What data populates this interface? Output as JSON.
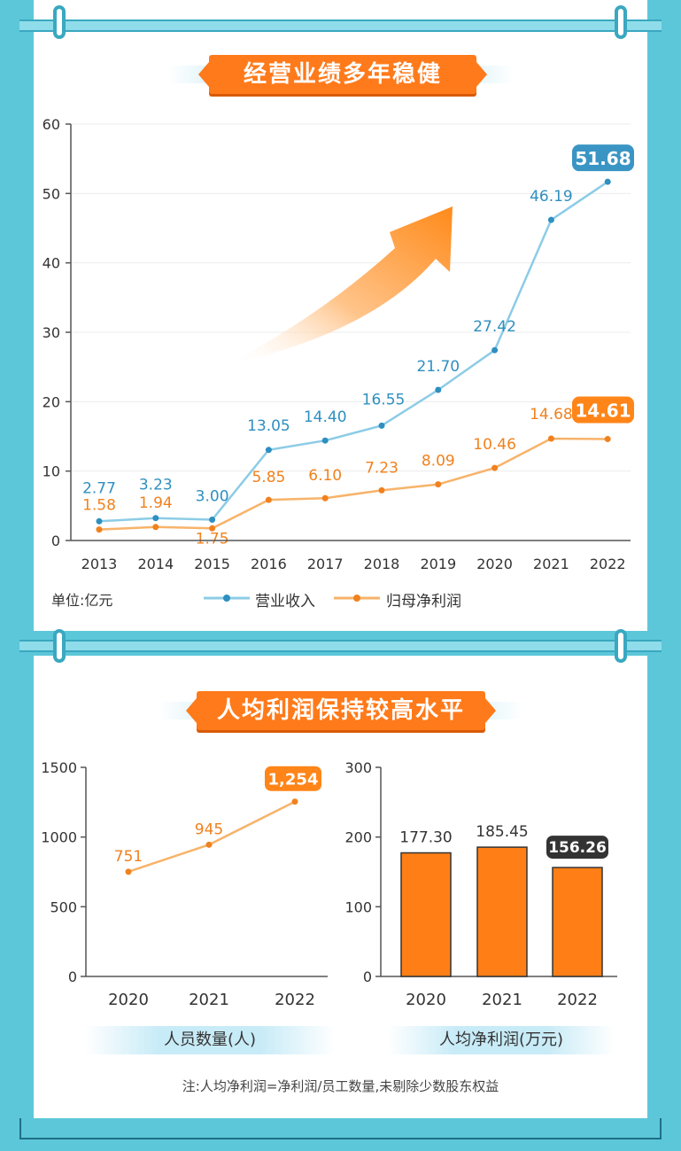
{
  "section1": {
    "title": "经营业绩多年稳健",
    "unit": "单位:亿元",
    "legend": [
      "营业收入",
      "归母净利润"
    ]
  },
  "section2": {
    "title": "人均利润保持较高水平",
    "left_caption": "人员数量(人)",
    "right_caption": "人均净利润(万元)",
    "note": "注:人均净利润=净利润/员工数量,未剔除少数股东权益"
  },
  "colors": {
    "revenue": "#8ccce6",
    "revenue_label": "#2e8fc0",
    "profit": "#f7b36a",
    "profit_label": "#f0811e",
    "bar": "#ff7f16",
    "accent": "#ff7a1a"
  },
  "chart_data": [
    {
      "type": "line",
      "x": [
        "2013",
        "2014",
        "2015",
        "2016",
        "2017",
        "2018",
        "2019",
        "2020",
        "2021",
        "2022"
      ],
      "series": [
        {
          "name": "营业收入",
          "values": [
            2.77,
            3.23,
            3.0,
            13.05,
            14.4,
            16.55,
            21.7,
            27.42,
            46.19,
            51.68
          ],
          "labels": [
            "2.77",
            "3.23",
            "3.00",
            "13.05",
            "14.40",
            "16.55",
            "21.70",
            "27.42",
            "46.19",
            "51.68"
          ]
        },
        {
          "name": "归母净利润",
          "values": [
            1.58,
            1.94,
            1.75,
            5.85,
            6.1,
            7.23,
            8.09,
            10.46,
            14.68,
            14.61
          ],
          "labels": [
            "1.58",
            "1.94",
            "1.75",
            "5.85",
            "6.10",
            "7.23",
            "8.09",
            "10.46",
            "14.68",
            "14.61"
          ]
        }
      ],
      "yticks": [
        "0",
        "10",
        "20",
        "30",
        "40",
        "50",
        "60"
      ],
      "ylim": [
        0,
        60
      ],
      "grid": true,
      "legend": "bottom"
    },
    {
      "type": "line",
      "x": [
        "2020",
        "2021",
        "2022"
      ],
      "values": [
        751,
        945,
        1254
      ],
      "labels": [
        "751",
        "945",
        "1,254"
      ],
      "yticks": [
        "0",
        "500",
        "1000",
        "1500"
      ],
      "ylim": [
        0,
        1500
      ],
      "xlabel": "人员数量(人)"
    },
    {
      "type": "bar",
      "categories": [
        "2020",
        "2021",
        "2022"
      ],
      "values": [
        177.3,
        185.45,
        156.26
      ],
      "labels": [
        "177.30",
        "185.45",
        "156.26"
      ],
      "yticks": [
        "0",
        "100",
        "200",
        "300"
      ],
      "ylim": [
        0,
        300
      ],
      "xlabel": "人均净利润(万元)"
    }
  ]
}
